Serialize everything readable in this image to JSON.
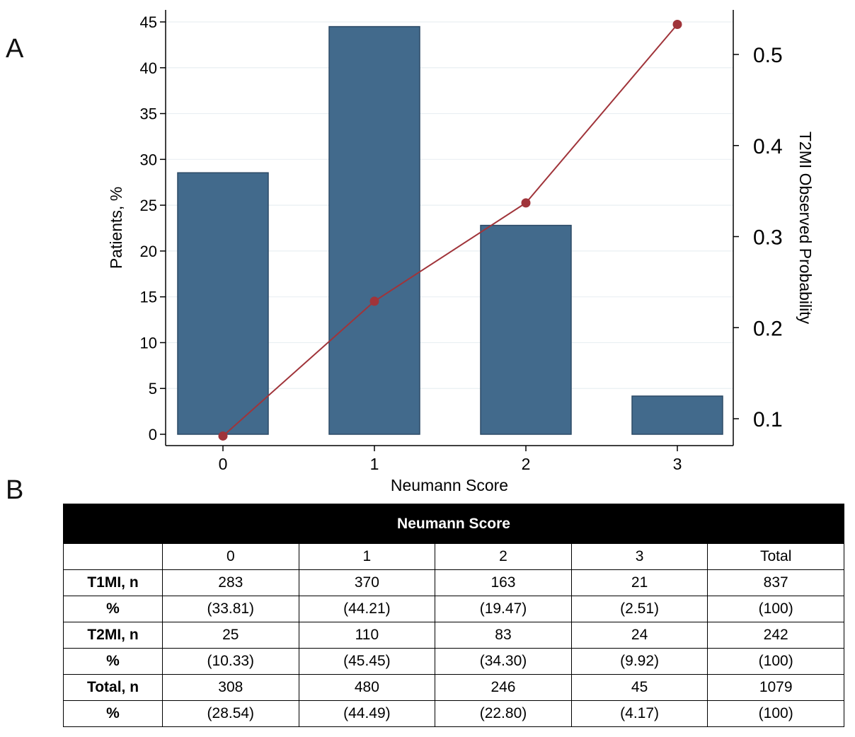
{
  "panels": {
    "a": "A",
    "b": "B"
  },
  "chart_data": {
    "type": "bar",
    "x_label": "Neumann Score",
    "categories": [
      "0",
      "1",
      "2",
      "3"
    ],
    "y_left_label": "Patients, %",
    "y_left_ylim": [
      0,
      45
    ],
    "y_left_ticks": [
      0,
      5,
      10,
      15,
      20,
      25,
      30,
      35,
      40,
      45
    ],
    "y_right_label": "T2MI Observed Probability",
    "y_right_ticks": [
      0.1,
      0.2,
      0.3,
      0.4,
      0.5
    ],
    "series": [
      {
        "name": "Patients, %",
        "type": "bar",
        "axis": "left",
        "values": [
          28.54,
          44.49,
          22.8,
          4.17
        ],
        "color": "#426a8c"
      },
      {
        "name": "T2MI Observed Probability",
        "type": "line",
        "axis": "right",
        "values": [
          0.081,
          0.229,
          0.337,
          0.533
        ],
        "color": "#a0343a"
      }
    ],
    "grid": true
  },
  "table": {
    "header": "Neumann Score",
    "columns": [
      "",
      "0",
      "1",
      "2",
      "3",
      "Total"
    ],
    "rows": [
      {
        "label": "T1MI, n",
        "cells": [
          "283",
          "370",
          "163",
          "21",
          "837"
        ]
      },
      {
        "label": "%",
        "cells": [
          "(33.81)",
          "(44.21)",
          "(19.47)",
          "(2.51)",
          "(100)"
        ]
      },
      {
        "label": "T2MI, n",
        "cells": [
          "25",
          "110",
          "83",
          "24",
          "242"
        ]
      },
      {
        "label": "%",
        "cells": [
          "(10.33)",
          "(45.45)",
          "(34.30)",
          "(9.92)",
          "(100)"
        ]
      },
      {
        "label": "Total, n",
        "cells": [
          "308",
          "480",
          "246",
          "45",
          "1079"
        ]
      },
      {
        "label": "%",
        "cells": [
          "(28.54)",
          "(44.49)",
          "(22.80)",
          "(4.17)",
          "(100)"
        ]
      }
    ]
  }
}
